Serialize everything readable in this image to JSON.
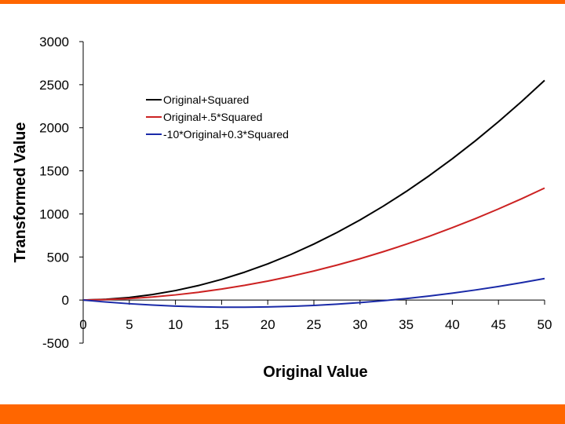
{
  "colors": {
    "accent_bar": "#ff6600",
    "axis": "#000000"
  },
  "chart_data": {
    "type": "line",
    "xlabel": "Original Value",
    "ylabel": "Transformed Value",
    "xlim": [
      0,
      50
    ],
    "ylim": [
      -500,
      3000
    ],
    "xticks": [
      0,
      5,
      10,
      15,
      20,
      25,
      30,
      35,
      40,
      45,
      50
    ],
    "yticks": [
      -500,
      0,
      500,
      1000,
      1500,
      2000,
      2500,
      3000
    ],
    "grid": false,
    "legend_position": "top-left",
    "x": [
      0,
      2.5,
      5,
      7.5,
      10,
      12.5,
      15,
      17.5,
      20,
      22.5,
      25,
      27.5,
      30,
      32.5,
      35,
      37.5,
      40,
      42.5,
      45,
      47.5,
      50
    ],
    "series": [
      {
        "name": "Original+Squared",
        "color": "#000000",
        "values": [
          0,
          8.75,
          30,
          63.75,
          110,
          168.75,
          240,
          323.75,
          420,
          528.75,
          650,
          783.75,
          930,
          1088.75,
          1260,
          1443.75,
          1640,
          1848.75,
          2070,
          2303.75,
          2550
        ]
      },
      {
        "name": "Original+.5*Squared",
        "color": "#cc2222",
        "values": [
          0,
          5.625,
          17.5,
          35.625,
          60,
          90.625,
          127.5,
          170.625,
          220,
          275.625,
          337.5,
          405.625,
          480,
          560.625,
          647.5,
          740.625,
          840,
          945.625,
          1057.5,
          1175.625,
          1300
        ]
      },
      {
        "name": "-10*Original+0.3*Squared",
        "color": "#1a2aa8",
        "values": [
          0,
          -23.125,
          -42.5,
          -58.125,
          -70,
          -78.125,
          -82.5,
          -83.125,
          -80,
          -73.125,
          -62.5,
          -48.125,
          -30,
          -8.125,
          17.5,
          46.875,
          80,
          116.875,
          157.5,
          201.875,
          250
        ]
      }
    ]
  }
}
